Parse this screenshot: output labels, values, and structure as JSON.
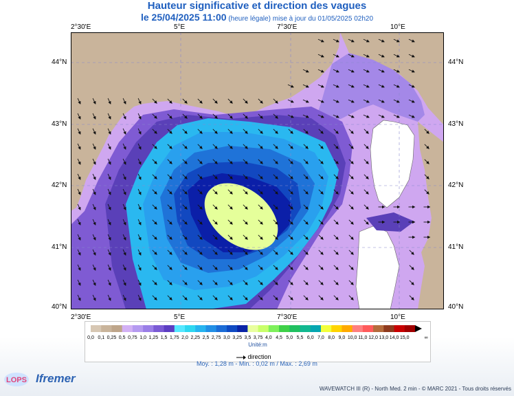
{
  "header": {
    "title": "Hauteur significative et direction des vagues",
    "date": "le 25/04/2025 11:00",
    "date_note": "(heure légale) mise à jour du 01/05/2025 02h20"
  },
  "map": {
    "lon_labels": [
      "2°30'E",
      "5°E",
      "7°30'E",
      "10°E"
    ],
    "lat_labels": [
      "44°N",
      "43°N",
      "42°N",
      "41°N",
      "40°N"
    ],
    "colors": {
      "land": "#c9b49b",
      "sea_bands": [
        "#cfa7f0",
        "#a488e8",
        "#7f5bd3",
        "#5a40b8",
        "#2ab8f0",
        "#29a0ee",
        "#1f73d8",
        "#1248c0",
        "#0b1fa8",
        "#e5ff9a"
      ]
    }
  },
  "legend": {
    "labels": [
      "0,0",
      "0,1",
      "0,25",
      "0,5",
      "0,75",
      "1,0",
      "1,25",
      "1,5",
      "1,75",
      "2,0",
      "2,25",
      "2,5",
      "2,75",
      "3,0",
      "3,25",
      "3,5",
      "3,75",
      "4,0",
      "4,5",
      "5,0",
      "5,5",
      "6,0",
      "7,0",
      "8,0",
      "9,0",
      "10,0",
      "11,0",
      "12,0",
      "13,0",
      "14,0",
      "15,0"
    ],
    "colors": [
      "#d7c7b3",
      "#c9b49b",
      "#bea58a",
      "#d2b0f4",
      "#b59af0",
      "#9a7ee7",
      "#7a5ad4",
      "#5c3ec2",
      "#55e8ff",
      "#2ed7f0",
      "#27b4ef",
      "#228fe5",
      "#1c6cd6",
      "#0f4ac2",
      "#0a24a6",
      "#e9ff9e",
      "#c9ff6a",
      "#7ef05a",
      "#3ed048",
      "#20c060",
      "#12b890",
      "#06a6b0",
      "#f3ff3a",
      "#ffd400",
      "#ffaa00",
      "#ff7f7f",
      "#ff5b5b",
      "#b56b3c",
      "#8f3a1e",
      "#c80000",
      "#a00000"
    ],
    "unit": "Unité:m",
    "direction": "direction",
    "end_symbol": "∞"
  },
  "stats": "Moy. : 1,28 m   -   Min. : 0,02 m / Max. : 2,69 m",
  "footer": "WAVEWATCH III (R) - North Med. 2 min - © MARC 2021 - Tous droits réservés",
  "logos": {
    "lops": "LOPS",
    "ifremer": "Ifremer"
  }
}
